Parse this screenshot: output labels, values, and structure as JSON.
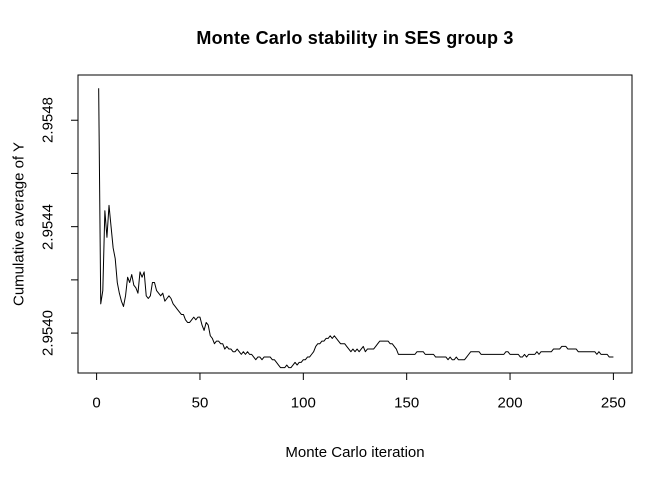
{
  "title": "Monte Carlo stability in SES group 3",
  "chart_data": {
    "type": "line",
    "title": "Monte Carlo stability in SES group 3",
    "xlabel": "Monte Carlo iteration",
    "ylabel": "Cumulative average of Y",
    "x_ticks": [
      0,
      50,
      100,
      150,
      200,
      250
    ],
    "x_tick_labels": [
      "0",
      "50",
      "100",
      "150",
      "200",
      "250"
    ],
    "y_ticks": [
      2.954,
      2.9542,
      2.9544,
      2.9546,
      2.9548
    ],
    "y_tick_labels": [
      "2.9540",
      "",
      "2.9544",
      "",
      "2.9548"
    ],
    "xlim": [
      -9,
      259
    ],
    "ylim": [
      2.95385,
      2.95497
    ],
    "grid": false,
    "legend": null,
    "background_color": "#ffffff",
    "line_color": "#000000",
    "axis_color": "#000000",
    "series": [
      {
        "name": "Cumulative average of Y",
        "x_start": 1,
        "x_step": 1,
        "y": [
          2.95492,
          2.95411,
          2.95416,
          2.95446,
          2.95436,
          2.95448,
          2.9544,
          2.95432,
          2.95428,
          2.95419,
          2.95415,
          2.95412,
          2.9541,
          2.95414,
          2.95421,
          2.95419,
          2.95422,
          2.95418,
          2.95417,
          2.95415,
          2.95423,
          2.95421,
          2.95423,
          2.95414,
          2.95413,
          2.95414,
          2.95419,
          2.95419,
          2.95416,
          2.95415,
          2.95414,
          2.95415,
          2.95412,
          2.95413,
          2.95414,
          2.95413,
          2.95411,
          2.9541,
          2.95409,
          2.95408,
          2.95407,
          2.95407,
          2.95405,
          2.95404,
          2.95404,
          2.95405,
          2.95406,
          2.95405,
          2.95406,
          2.95406,
          2.95403,
          2.95401,
          2.95404,
          2.95403,
          2.95399,
          2.95398,
          2.95396,
          2.95397,
          2.95397,
          2.95396,
          2.95396,
          2.95394,
          2.95395,
          2.95394,
          2.95394,
          2.95393,
          2.95393,
          2.95394,
          2.95393,
          2.95392,
          2.95393,
          2.95392,
          2.95393,
          2.95392,
          2.95392,
          2.95391,
          2.9539,
          2.95391,
          2.95391,
          2.9539,
          2.95391,
          2.95391,
          2.95391,
          2.95391,
          2.9539,
          2.9539,
          2.95389,
          2.95388,
          2.95387,
          2.95387,
          2.95387,
          2.95388,
          2.95387,
          2.95387,
          2.95388,
          2.95389,
          2.95388,
          2.95389,
          2.95389,
          2.9539,
          2.9539,
          2.95391,
          2.95391,
          2.95392,
          2.95393,
          2.95395,
          2.95396,
          2.95396,
          2.95397,
          2.95397,
          2.95398,
          2.95398,
          2.95399,
          2.95398,
          2.95399,
          2.95398,
          2.95397,
          2.95396,
          2.95396,
          2.95396,
          2.95395,
          2.95394,
          2.95393,
          2.95394,
          2.95393,
          2.95394,
          2.95393,
          2.95394,
          2.95395,
          2.95393,
          2.95394,
          2.95394,
          2.95394,
          2.95394,
          2.95395,
          2.95396,
          2.95397,
          2.95397,
          2.95397,
          2.95397,
          2.95397,
          2.95396,
          2.95396,
          2.95395,
          2.95394,
          2.95392,
          2.95392,
          2.95392,
          2.95392,
          2.95392,
          2.95392,
          2.95392,
          2.95392,
          2.95392,
          2.95393,
          2.95393,
          2.95393,
          2.95393,
          2.95392,
          2.95392,
          2.95392,
          2.95392,
          2.95392,
          2.95391,
          2.95391,
          2.95391,
          2.95391,
          2.95391,
          2.95391,
          2.9539,
          2.95391,
          2.9539,
          2.9539,
          2.95391,
          2.9539,
          2.9539,
          2.9539,
          2.9539,
          2.95391,
          2.95392,
          2.95393,
          2.95393,
          2.95393,
          2.95393,
          2.95393,
          2.95392,
          2.95392,
          2.95392,
          2.95392,
          2.95392,
          2.95392,
          2.95392,
          2.95392,
          2.95392,
          2.95392,
          2.95392,
          2.95392,
          2.95393,
          2.95393,
          2.95392,
          2.95392,
          2.95392,
          2.95392,
          2.95392,
          2.95391,
          2.95391,
          2.95392,
          2.95391,
          2.95392,
          2.95392,
          2.95392,
          2.95392,
          2.95393,
          2.95392,
          2.95393,
          2.95393,
          2.95393,
          2.95393,
          2.95393,
          2.95393,
          2.95394,
          2.95394,
          2.95394,
          2.95394,
          2.95395,
          2.95395,
          2.95395,
          2.95394,
          2.95394,
          2.95394,
          2.95394,
          2.95394,
          2.95393,
          2.95393,
          2.95393,
          2.95393,
          2.95393,
          2.95393,
          2.95393,
          2.95393,
          2.95393,
          2.95392,
          2.95393,
          2.95392,
          2.95392,
          2.95392,
          2.95392,
          2.95391,
          2.95391,
          2.95391
        ]
      }
    ]
  }
}
